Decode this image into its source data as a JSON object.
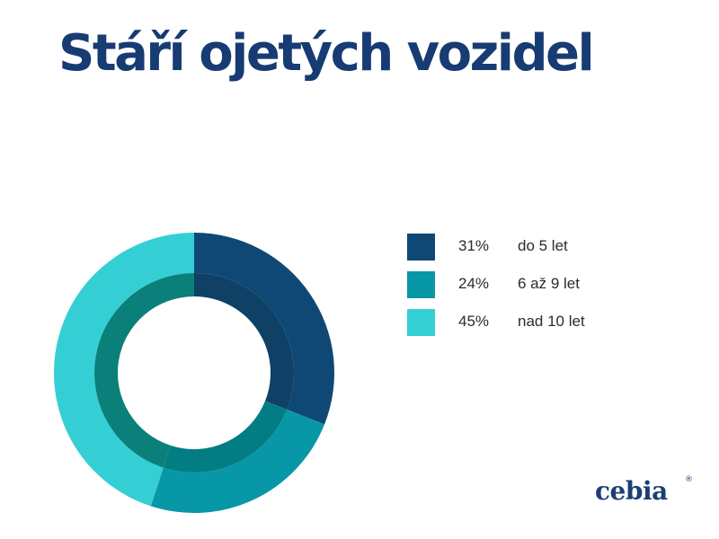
{
  "title": "Stáří ojetých vozidel",
  "chart_data": {
    "type": "pie",
    "style": "donut",
    "title": "Stáří ojetých vozidel",
    "legend_position": "right",
    "slices": [
      {
        "label": "do 5 let",
        "value": 31,
        "value_label": "31%",
        "color": "#0f4874",
        "inner_color": "#0e4165"
      },
      {
        "label": "6 až 9 let",
        "value": 24,
        "value_label": "24%",
        "color": "#0797a7",
        "inner_color": "#037d84"
      },
      {
        "label": "nad 10 let",
        "value": 45,
        "value_label": "45%",
        "color": "#34cfd4",
        "inner_color": "#0b7f7a"
      }
    ]
  },
  "logo": {
    "text": "cebia",
    "mark": "®"
  }
}
